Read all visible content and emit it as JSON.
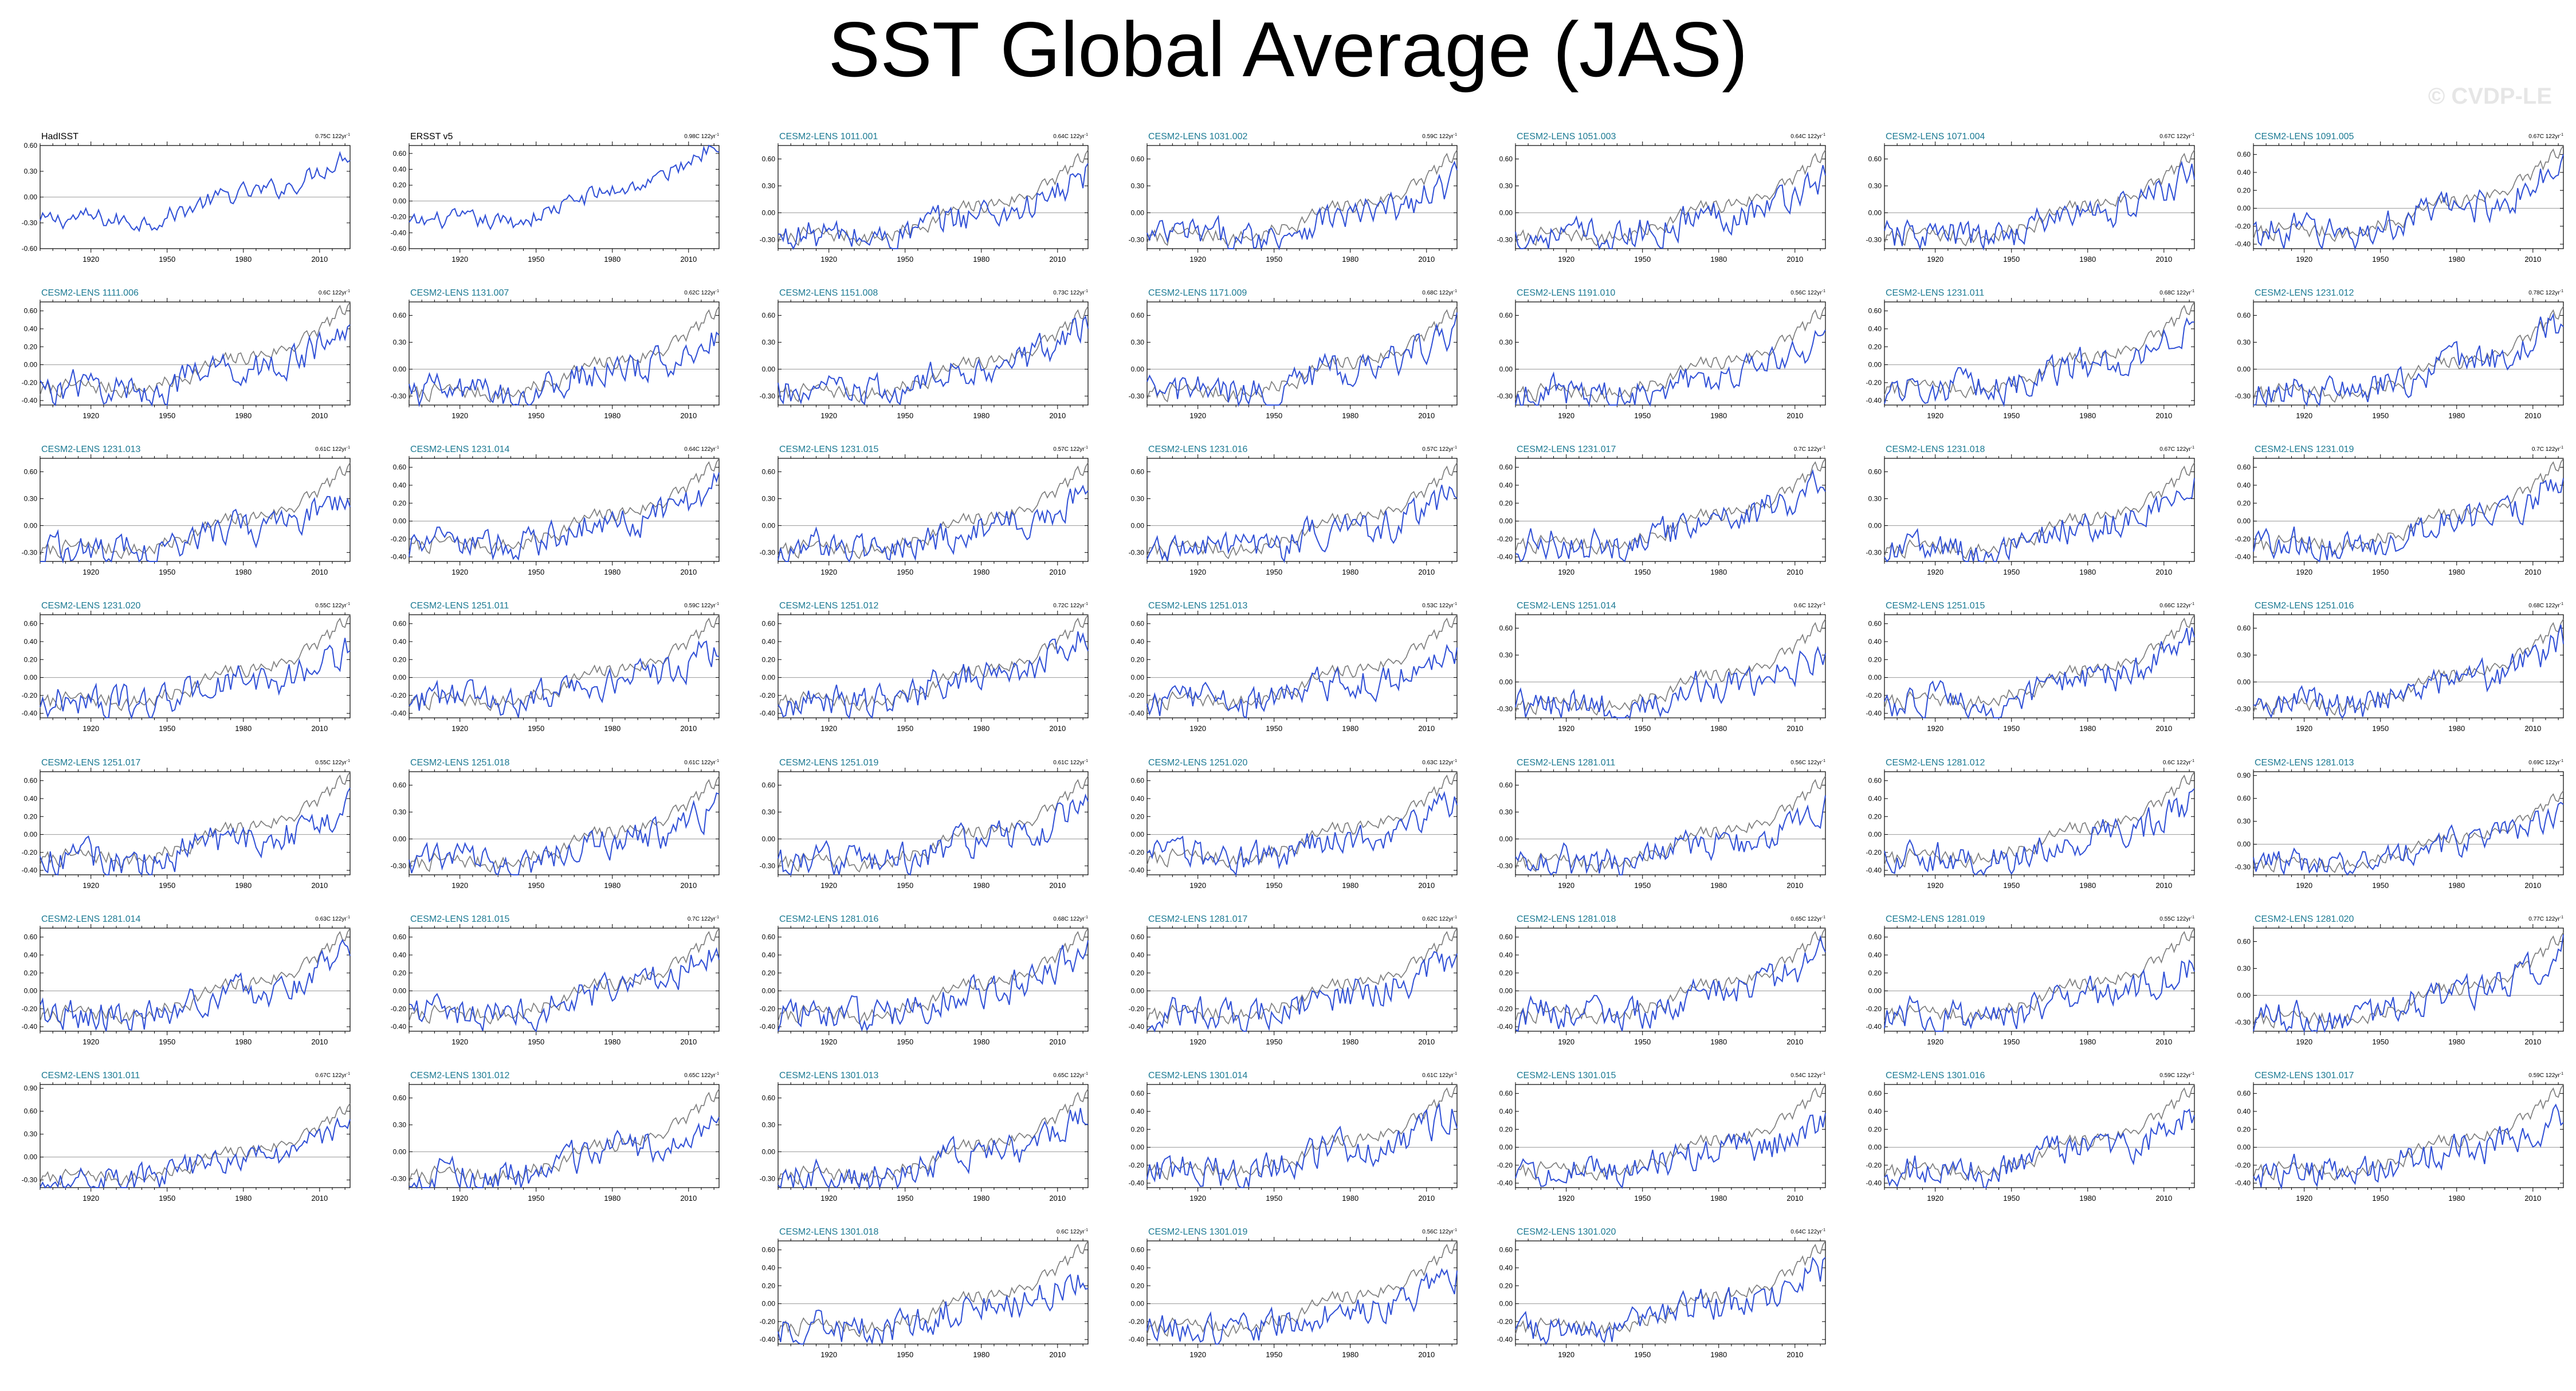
{
  "title": "SST Global Average (JAS)",
  "watermark": "© CVDP-LE",
  "colors": {
    "model": "#2f4fd6",
    "obs": "#7a7a7a",
    "member_title": "#1c7a93",
    "obs_title": "#000000",
    "zero_line": "#999999"
  },
  "chart_data": {
    "type": "line",
    "x_range": [
      1900,
      2022
    ],
    "x_ticks": [
      1920,
      1950,
      1980,
      2010
    ],
    "panels": [
      {
        "name": "HadISST",
        "trend": "0.75C 122yr",
        "is_obs": true,
        "yticks": [
          "-0.60",
          "-0.30",
          "0.00",
          "0.30",
          "0.60"
        ],
        "ylim": [
          -0.6,
          0.6
        ]
      },
      {
        "name": "ERSST v5",
        "trend": "0.98C 122yr",
        "is_obs": true,
        "yticks": [
          "-0.60",
          "-0.40",
          "-0.20",
          "0.00",
          "0.20",
          "0.40",
          "0.60"
        ],
        "ylim": [
          -0.6,
          0.7
        ]
      },
      {
        "name": "CESM2-LENS 1011.001",
        "trend": "0.64C 122yr",
        "yticks": [
          "-0.30",
          "0.00",
          "0.30",
          "0.60"
        ],
        "ylim": [
          -0.4,
          0.75
        ]
      },
      {
        "name": "CESM2-LENS 1031.002",
        "trend": "0.59C 122yr",
        "yticks": [
          "-0.30",
          "0.00",
          "0.30",
          "0.60"
        ],
        "ylim": [
          -0.4,
          0.75
        ]
      },
      {
        "name": "CESM2-LENS 1051.003",
        "trend": "0.64C 122yr",
        "yticks": [
          "-0.30",
          "0.00",
          "0.30",
          "0.60"
        ],
        "ylim": [
          -0.4,
          0.75
        ]
      },
      {
        "name": "CESM2-LENS 1071.004",
        "trend": "0.67C 122yr",
        "yticks": [
          "-0.30",
          "0.00",
          "0.30",
          "0.60"
        ],
        "ylim": [
          -0.4,
          0.75
        ]
      },
      {
        "name": "CESM2-LENS 1091.005",
        "trend": "0.67C 122yr",
        "yticks": [
          "-0.40",
          "-0.20",
          "0.00",
          "0.20",
          "0.40",
          "0.60"
        ],
        "ylim": [
          -0.45,
          0.7
        ]
      },
      {
        "name": "CESM2-LENS 1111.006",
        "trend": "0.6C 122yr",
        "yticks": [
          "-0.40",
          "-0.20",
          "0.00",
          "0.20",
          "0.40",
          "0.60"
        ],
        "ylim": [
          -0.45,
          0.7
        ]
      },
      {
        "name": "CESM2-LENS 1131.007",
        "trend": "0.62C 122yr",
        "yticks": [
          "-0.30",
          "0.00",
          "0.30",
          "0.60"
        ],
        "ylim": [
          -0.4,
          0.75
        ]
      },
      {
        "name": "CESM2-LENS 1151.008",
        "trend": "0.73C 122yr",
        "yticks": [
          "-0.30",
          "0.00",
          "0.30",
          "0.60"
        ],
        "ylim": [
          -0.4,
          0.75
        ]
      },
      {
        "name": "CESM2-LENS 1171.009",
        "trend": "0.68C 122yr",
        "yticks": [
          "-0.30",
          "0.00",
          "0.30",
          "0.60"
        ],
        "ylim": [
          -0.4,
          0.75
        ]
      },
      {
        "name": "CESM2-LENS 1191.010",
        "trend": "0.56C 122yr",
        "yticks": [
          "-0.30",
          "0.00",
          "0.30",
          "0.60"
        ],
        "ylim": [
          -0.4,
          0.75
        ]
      },
      {
        "name": "CESM2-LENS 1231.011",
        "trend": "0.68C 122yr",
        "yticks": [
          "-0.40",
          "-0.20",
          "0.00",
          "0.20",
          "0.40",
          "0.60"
        ],
        "ylim": [
          -0.45,
          0.7
        ]
      },
      {
        "name": "CESM2-LENS 1231.012",
        "trend": "0.78C 122yr",
        "yticks": [
          "-0.30",
          "0.00",
          "0.30",
          "0.60"
        ],
        "ylim": [
          -0.4,
          0.75
        ]
      },
      {
        "name": "CESM2-LENS 1231.013",
        "trend": "0.61C 122yr",
        "yticks": [
          "-0.30",
          "0.00",
          "0.30",
          "0.60"
        ],
        "ylim": [
          -0.4,
          0.75
        ]
      },
      {
        "name": "CESM2-LENS 1231.014",
        "trend": "0.64C 122yr",
        "yticks": [
          "-0.40",
          "-0.20",
          "0.00",
          "0.20",
          "0.40",
          "0.60"
        ],
        "ylim": [
          -0.45,
          0.7
        ]
      },
      {
        "name": "CESM2-LENS 1231.015",
        "trend": "0.57C 122yr",
        "yticks": [
          "-0.30",
          "0.00",
          "0.30",
          "0.60"
        ],
        "ylim": [
          -0.4,
          0.75
        ]
      },
      {
        "name": "CESM2-LENS 1231.016",
        "trend": "0.57C 122yr",
        "yticks": [
          "-0.30",
          "0.00",
          "0.30",
          "0.60"
        ],
        "ylim": [
          -0.4,
          0.75
        ]
      },
      {
        "name": "CESM2-LENS 1231.017",
        "trend": "0.7C 122yr",
        "yticks": [
          "-0.40",
          "-0.20",
          "0.00",
          "0.20",
          "0.40",
          "0.60"
        ],
        "ylim": [
          -0.45,
          0.7
        ]
      },
      {
        "name": "CESM2-LENS 1231.018",
        "trend": "0.67C 122yr",
        "yticks": [
          "-0.30",
          "0.00",
          "0.30",
          "0.60"
        ],
        "ylim": [
          -0.4,
          0.75
        ]
      },
      {
        "name": "CESM2-LENS 1231.019",
        "trend": "0.7C 122yr",
        "yticks": [
          "-0.40",
          "-0.20",
          "0.00",
          "0.20",
          "0.40",
          "0.60"
        ],
        "ylim": [
          -0.45,
          0.7
        ]
      },
      {
        "name": "CESM2-LENS 1231.020",
        "trend": "0.55C 122yr",
        "yticks": [
          "-0.40",
          "-0.20",
          "0.00",
          "0.20",
          "0.40",
          "0.60"
        ],
        "ylim": [
          -0.45,
          0.7
        ]
      },
      {
        "name": "CESM2-LENS 1251.011",
        "trend": "0.59C 122yr",
        "yticks": [
          "-0.40",
          "-0.20",
          "0.00",
          "0.20",
          "0.40",
          "0.60"
        ],
        "ylim": [
          -0.45,
          0.7
        ]
      },
      {
        "name": "CESM2-LENS 1251.012",
        "trend": "0.72C 122yr",
        "yticks": [
          "-0.40",
          "-0.20",
          "0.00",
          "0.20",
          "0.40",
          "0.60"
        ],
        "ylim": [
          -0.45,
          0.7
        ]
      },
      {
        "name": "CESM2-LENS 1251.013",
        "trend": "0.53C 122yr",
        "yticks": [
          "-0.40",
          "-0.20",
          "0.00",
          "0.20",
          "0.40",
          "0.60"
        ],
        "ylim": [
          -0.45,
          0.7
        ]
      },
      {
        "name": "CESM2-LENS 1251.014",
        "trend": "0.6C 122yr",
        "yticks": [
          "-0.30",
          "0.00",
          "0.30",
          "0.60"
        ],
        "ylim": [
          -0.4,
          0.75
        ]
      },
      {
        "name": "CESM2-LENS 1251.015",
        "trend": "0.66C 122yr",
        "yticks": [
          "-0.40",
          "-0.20",
          "0.00",
          "0.20",
          "0.40",
          "0.60"
        ],
        "ylim": [
          -0.45,
          0.7
        ]
      },
      {
        "name": "CESM2-LENS 1251.016",
        "trend": "0.68C 122yr",
        "yticks": [
          "-0.30",
          "0.00",
          "0.30",
          "0.60"
        ],
        "ylim": [
          -0.4,
          0.75
        ]
      },
      {
        "name": "CESM2-LENS 1251.017",
        "trend": "0.55C 122yr",
        "yticks": [
          "-0.40",
          "-0.20",
          "0.00",
          "0.20",
          "0.40",
          "0.60"
        ],
        "ylim": [
          -0.45,
          0.7
        ]
      },
      {
        "name": "CESM2-LENS 1251.018",
        "trend": "0.61C 122yr",
        "yticks": [
          "-0.30",
          "0.00",
          "0.30",
          "0.60"
        ],
        "ylim": [
          -0.4,
          0.75
        ]
      },
      {
        "name": "CESM2-LENS 1251.019",
        "trend": "0.61C 122yr",
        "yticks": [
          "-0.30",
          "0.00",
          "0.30",
          "0.60"
        ],
        "ylim": [
          -0.4,
          0.75
        ]
      },
      {
        "name": "CESM2-LENS 1251.020",
        "trend": "0.63C 122yr",
        "yticks": [
          "-0.40",
          "-0.20",
          "0.00",
          "0.20",
          "0.40",
          "0.60"
        ],
        "ylim": [
          -0.45,
          0.7
        ]
      },
      {
        "name": "CESM2-LENS 1281.011",
        "trend": "0.56C 122yr",
        "yticks": [
          "-0.30",
          "0.00",
          "0.30",
          "0.60"
        ],
        "ylim": [
          -0.4,
          0.75
        ]
      },
      {
        "name": "CESM2-LENS 1281.012",
        "trend": "0.6C 122yr",
        "yticks": [
          "-0.40",
          "-0.20",
          "0.00",
          "0.20",
          "0.40",
          "0.60"
        ],
        "ylim": [
          -0.45,
          0.7
        ]
      },
      {
        "name": "CESM2-LENS 1281.013",
        "trend": "0.69C 122yr",
        "yticks": [
          "-0.30",
          "0.00",
          "0.30",
          "0.60",
          "0.90"
        ],
        "ylim": [
          -0.4,
          0.95
        ]
      },
      {
        "name": "CESM2-LENS 1281.014",
        "trend": "0.63C 122yr",
        "yticks": [
          "-0.40",
          "-0.20",
          "0.00",
          "0.20",
          "0.40",
          "0.60"
        ],
        "ylim": [
          -0.45,
          0.7
        ]
      },
      {
        "name": "CESM2-LENS 1281.015",
        "trend": "0.7C 122yr",
        "yticks": [
          "-0.40",
          "-0.20",
          "0.00",
          "0.20",
          "0.40",
          "0.60"
        ],
        "ylim": [
          -0.45,
          0.7
        ]
      },
      {
        "name": "CESM2-LENS 1281.016",
        "trend": "0.68C 122yr",
        "yticks": [
          "-0.40",
          "-0.20",
          "0.00",
          "0.20",
          "0.40",
          "0.60"
        ],
        "ylim": [
          -0.45,
          0.7
        ]
      },
      {
        "name": "CESM2-LENS 1281.017",
        "trend": "0.62C 122yr",
        "yticks": [
          "-0.40",
          "-0.20",
          "0.00",
          "0.20",
          "0.40",
          "0.60"
        ],
        "ylim": [
          -0.45,
          0.7
        ]
      },
      {
        "name": "CESM2-LENS 1281.018",
        "trend": "0.65C 122yr",
        "yticks": [
          "-0.40",
          "-0.20",
          "0.00",
          "0.20",
          "0.40",
          "0.60"
        ],
        "ylim": [
          -0.45,
          0.7
        ]
      },
      {
        "name": "CESM2-LENS 1281.019",
        "trend": "0.55C 122yr",
        "yticks": [
          "-0.40",
          "-0.20",
          "0.00",
          "0.20",
          "0.40",
          "0.60"
        ],
        "ylim": [
          -0.45,
          0.7
        ]
      },
      {
        "name": "CESM2-LENS 1281.020",
        "trend": "0.77C 122yr",
        "yticks": [
          "-0.30",
          "0.00",
          "0.30",
          "0.60"
        ],
        "ylim": [
          -0.4,
          0.75
        ]
      },
      {
        "name": "CESM2-LENS 1301.011",
        "trend": "0.67C 122yr",
        "yticks": [
          "-0.30",
          "0.00",
          "0.30",
          "0.60",
          "0.90"
        ],
        "ylim": [
          -0.4,
          0.95
        ]
      },
      {
        "name": "CESM2-LENS 1301.012",
        "trend": "0.65C 122yr",
        "yticks": [
          "-0.30",
          "0.00",
          "0.30",
          "0.60"
        ],
        "ylim": [
          -0.4,
          0.75
        ]
      },
      {
        "name": "CESM2-LENS 1301.013",
        "trend": "0.65C 122yr",
        "yticks": [
          "-0.30",
          "0.00",
          "0.30",
          "0.60"
        ],
        "ylim": [
          -0.4,
          0.75
        ]
      },
      {
        "name": "CESM2-LENS 1301.014",
        "trend": "0.61C 122yr",
        "yticks": [
          "-0.40",
          "-0.20",
          "0.00",
          "0.20",
          "0.40",
          "0.60"
        ],
        "ylim": [
          -0.45,
          0.7
        ]
      },
      {
        "name": "CESM2-LENS 1301.015",
        "trend": "0.54C 122yr",
        "yticks": [
          "-0.40",
          "-0.20",
          "0.00",
          "0.20",
          "0.40",
          "0.60"
        ],
        "ylim": [
          -0.45,
          0.7
        ]
      },
      {
        "name": "CESM2-LENS 1301.016",
        "trend": "0.59C 122yr",
        "yticks": [
          "-0.40",
          "-0.20",
          "0.00",
          "0.20",
          "0.40",
          "0.60"
        ],
        "ylim": [
          -0.45,
          0.7
        ]
      },
      {
        "name": "CESM2-LENS 1301.017",
        "trend": "0.59C 122yr",
        "yticks": [
          "-0.40",
          "-0.20",
          "0.00",
          "0.20",
          "0.40",
          "0.60"
        ],
        "ylim": [
          -0.45,
          0.7
        ]
      },
      {
        "name": "CESM2-LENS 1301.018",
        "trend": "0.6C 122yr",
        "yticks": [
          "-0.40",
          "-0.20",
          "0.00",
          "0.20",
          "0.40",
          "0.60"
        ],
        "ylim": [
          -0.45,
          0.7
        ]
      },
      {
        "name": "CESM2-LENS 1301.019",
        "trend": "0.56C 122yr",
        "yticks": [
          "-0.40",
          "-0.20",
          "0.00",
          "0.20",
          "0.40",
          "0.60"
        ],
        "ylim": [
          -0.45,
          0.7
        ]
      },
      {
        "name": "CESM2-LENS 1301.020",
        "trend": "0.64C 122yr",
        "yticks": [
          "-0.40",
          "-0.20",
          "0.00",
          "0.20",
          "0.40",
          "0.60"
        ],
        "ylim": [
          -0.45,
          0.7
        ]
      }
    ]
  }
}
